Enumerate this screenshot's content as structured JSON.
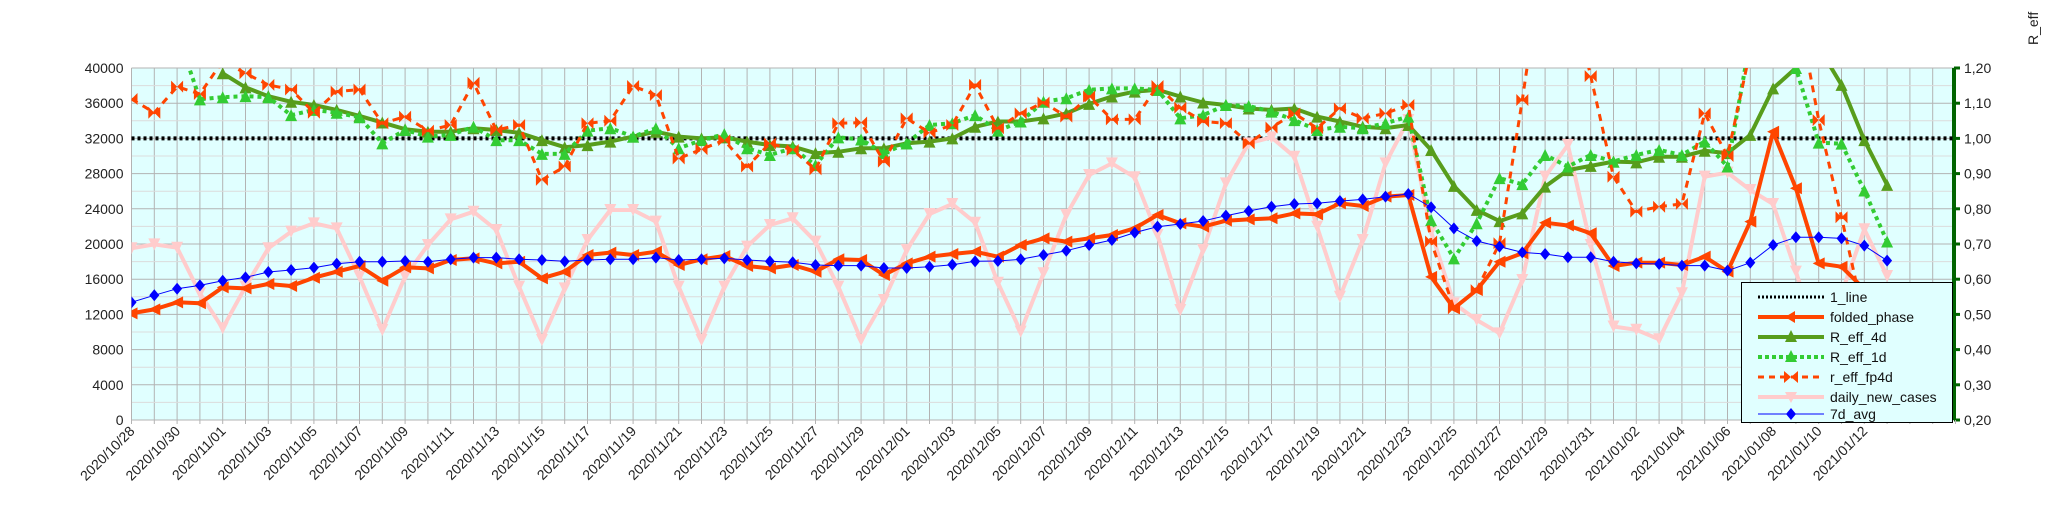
{
  "chart_data": {
    "type": "line",
    "title": "",
    "xlabel": "",
    "ylabel": "",
    "y2label": "R_eff",
    "ylim": [
      0,
      40000
    ],
    "y2lim": [
      0.2,
      1.2
    ],
    "yticks": [
      "0",
      "4000",
      "8000",
      "12000",
      "16000",
      "20000",
      "24000",
      "28000",
      "32000",
      "36000",
      "40000"
    ],
    "y2ticks": [
      "0,20",
      "0,30",
      "0,40",
      "0,50",
      "0,60",
      "0,70",
      "0,80",
      "0,90",
      "1,00",
      "1,10",
      "1,20"
    ],
    "xticks": [
      "2020/10/28",
      "2020/10/30",
      "2020/11/01",
      "2020/11/03",
      "2020/11/05",
      "2020/11/07",
      "2020/11/09",
      "2020/11/11",
      "2020/11/13",
      "2020/11/15",
      "2020/11/17",
      "2020/11/19",
      "2020/11/21",
      "2020/11/23",
      "2020/11/25",
      "2020/11/27",
      "2020/11/29",
      "2020/12/01",
      "2020/12/03",
      "2020/12/05",
      "2020/12/07",
      "2020/12/09",
      "2020/12/11",
      "2020/12/13",
      "2020/12/15",
      "2020/12/17",
      "2020/12/19",
      "2020/12/21",
      "2020/12/23",
      "2020/12/25",
      "2020/12/27",
      "2020/12/29",
      "2020/12/31",
      "2021/01/02",
      "2021/01/04",
      "2021/01/06",
      "2021/01/08",
      "2021/01/10",
      "2021/01/12"
    ],
    "x_start": "2020/10/28",
    "x_days": 78,
    "grid": true,
    "legend_position": "bottom-right",
    "series": [
      {
        "name": "1_line",
        "axis": "right",
        "color": "#000000",
        "style": "dotted",
        "marker": "none",
        "constant": 1.0
      },
      {
        "name": "folded_phase",
        "axis": "left",
        "color": "#ff4500",
        "style": "solid-thick",
        "marker": "left-triangle",
        "values": [
          12120,
          12570,
          13370,
          13260,
          15070,
          14960,
          15450,
          15230,
          16170,
          16850,
          17500,
          15830,
          17350,
          17230,
          18180,
          18370,
          17800,
          17990,
          16100,
          16850,
          18750,
          19020,
          18750,
          19130,
          17610,
          18260,
          18640,
          17500,
          17230,
          17610,
          16850,
          18260,
          18180,
          16480,
          17800,
          18560,
          18860,
          19130,
          18560,
          19890,
          20640,
          20270,
          20640,
          21020,
          21780,
          23300,
          22350,
          21970,
          22650,
          22800,
          22920,
          23480,
          23370,
          24620,
          24320,
          25380,
          25570,
          16270,
          12690,
          14770,
          17990,
          18940,
          22420,
          22100,
          21220,
          17500,
          17880,
          17880,
          17610,
          18560,
          16860,
          22540,
          32760,
          26330,
          17800,
          17420,
          14860,
          11180
        ]
      },
      {
        "name": "R_eff_4d",
        "axis": "right",
        "color": "#579d1c",
        "style": "solid-thick",
        "marker": "up-triangle",
        "values": [
          null,
          null,
          null,
          null,
          1.185,
          1.145,
          1.12,
          1.104,
          1.095,
          1.081,
          1.064,
          1.045,
          1.026,
          1.019,
          1.019,
          1.029,
          1.024,
          1.016,
          0.995,
          0.975,
          0.981,
          0.991,
          1.005,
          1.019,
          1.005,
          1.0,
          1.003,
          0.991,
          0.981,
          0.977,
          0.958,
          0.962,
          0.972,
          0.972,
          0.986,
          0.991,
          1.0,
          1.033,
          1.048,
          1.048,
          1.057,
          1.071,
          1.098,
          1.119,
          1.133,
          1.138,
          1.119,
          1.102,
          1.095,
          1.085,
          1.081,
          1.085,
          1.062,
          1.048,
          1.033,
          1.029,
          1.038,
          0.967,
          0.865,
          0.797,
          0.765,
          0.787,
          0.863,
          0.91,
          0.922,
          0.934,
          0.932,
          0.948,
          0.948,
          0.965,
          0.958,
          1.01,
          1.142,
          1.2,
          1.26,
          1.152,
          0.995,
          0.868
        ]
      },
      {
        "name": "R_eff_1d",
        "axis": "right",
        "color": "#33cc33",
        "style": "dotted-thick",
        "marker": "up-triangle",
        "values": [
          null,
          null,
          1.3,
          1.111,
          1.117,
          1.12,
          1.117,
          1.066,
          1.081,
          1.073,
          1.06,
          0.986,
          1.024,
          1.005,
          1.01,
          1.033,
          0.995,
          0.995,
          0.956,
          0.956,
          1.022,
          1.029,
          1.005,
          1.029,
          0.972,
          0.995,
          1.012,
          0.972,
          0.953,
          0.972,
          0.924,
          1.003,
          0.997,
          0.958,
          0.986,
          1.038,
          1.043,
          1.066,
          1.022,
          1.048,
          1.104,
          1.114,
          1.138,
          1.142,
          1.142,
          1.138,
          1.057,
          1.066,
          1.095,
          1.092,
          1.076,
          1.052,
          1.024,
          1.033,
          1.029,
          1.043,
          1.062,
          0.768,
          0.659,
          0.759,
          0.887,
          0.87,
          0.953,
          0.92,
          0.953,
          0.934,
          0.953,
          0.967,
          0.953,
          0.991,
          0.92,
          1.28,
          1.4,
          1.2,
          0.988,
          0.985,
          0.852,
          0.707
        ]
      },
      {
        "name": "r_eff_fp4d",
        "axis": "right",
        "color": "#ff4500",
        "style": "dashed",
        "marker": "bowtie",
        "values": [
          1.112,
          1.073,
          1.147,
          1.126,
          1.22,
          1.185,
          1.152,
          1.139,
          1.073,
          1.133,
          1.139,
          1.043,
          1.062,
          1.022,
          1.038,
          1.158,
          1.024,
          1.038,
          0.882,
          0.92,
          1.043,
          1.05,
          1.149,
          1.123,
          0.943,
          0.969,
          0.995,
          0.92,
          0.986,
          0.967,
          0.912,
          1.043,
          1.045,
          0.934,
          1.057,
          1.016,
          1.038,
          1.152,
          1.029,
          1.071,
          1.102,
          1.062,
          1.119,
          1.054,
          1.054,
          1.149,
          1.087,
          1.048,
          1.043,
          0.986,
          1.031,
          1.071,
          1.029,
          1.085,
          1.057,
          1.071,
          1.095,
          0.707,
          0.517,
          0.569,
          0.702,
          1.109,
          1.55,
          1.45,
          1.177,
          0.891,
          0.792,
          0.806,
          0.814,
          1.071,
          0.95,
          1.25,
          1.5,
          1.4,
          1.052,
          0.776,
          0.489,
          0.422
        ]
      },
      {
        "name": "daily_new_cases",
        "axis": "left",
        "color": "#ffcccc",
        "style": "solid-thick",
        "marker": "down-triangle",
        "values": [
          19510,
          19960,
          19580,
          14390,
          10420,
          15150,
          19510,
          21400,
          22350,
          21780,
          16290,
          10230,
          16290,
          19890,
          22800,
          23670,
          21590,
          15150,
          9090,
          14960,
          20450,
          23860,
          23860,
          22540,
          15150,
          9090,
          15150,
          19700,
          22160,
          22920,
          20270,
          15150,
          9090,
          13630,
          19320,
          23410,
          24540,
          22420,
          15600,
          10040,
          16670,
          23300,
          27840,
          29160,
          27580,
          21020,
          12500,
          19320,
          26890,
          31440,
          32120,
          29920,
          21970,
          14010,
          20450,
          29160,
          34090,
          21400,
          13250,
          11360,
          9850,
          15910,
          27650,
          31250,
          19890,
          10620,
          10250,
          9170,
          14400,
          27650,
          28110,
          26140,
          24550,
          16860,
          8800,
          14400,
          21670,
          16370
        ]
      },
      {
        "name": "7d_avg",
        "axis": "left",
        "color": "#0000ff",
        "style": "solid-thin",
        "marker": "diamond",
        "values": [
          13370,
          14170,
          14920,
          15300,
          15830,
          16210,
          16820,
          17050,
          17310,
          17760,
          17990,
          17990,
          18070,
          17990,
          18260,
          18450,
          18450,
          18260,
          18180,
          18030,
          18180,
          18260,
          18260,
          18450,
          18180,
          18260,
          18370,
          18180,
          18030,
          17920,
          17610,
          17540,
          17540,
          17270,
          17270,
          17420,
          17650,
          18030,
          18070,
          18260,
          18750,
          19240,
          19890,
          20450,
          21290,
          21970,
          22270,
          22610,
          23220,
          23750,
          24240,
          24540,
          24620,
          24880,
          25070,
          25380,
          25680,
          24170,
          21780,
          20340,
          19700,
          19050,
          18860,
          18500,
          18490,
          17990,
          17800,
          17730,
          17540,
          17540,
          16970,
          17880,
          19890,
          20760,
          20760,
          20640,
          19810,
          18110
        ]
      }
    ]
  }
}
